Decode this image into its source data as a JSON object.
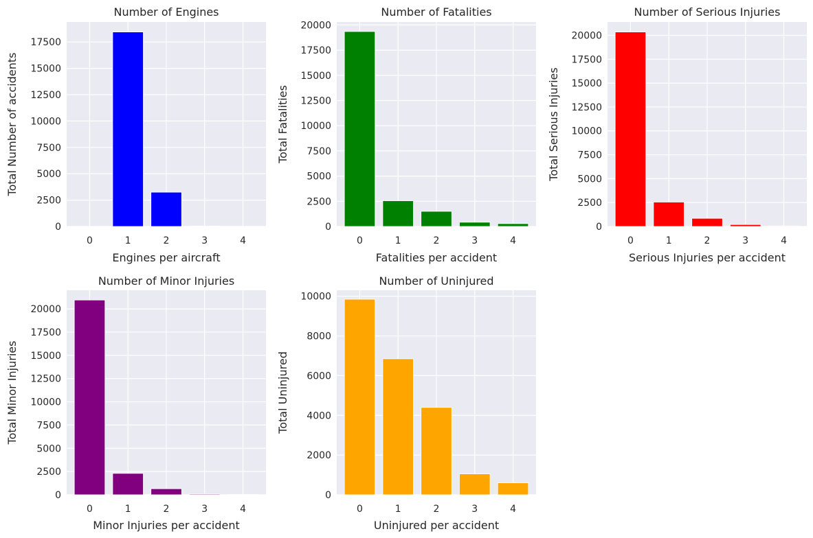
{
  "chart_data": [
    {
      "id": "engines",
      "type": "bar",
      "title": "Number of Engines",
      "xlabel": "Engines per aircraft",
      "ylabel": "Total Number of accidents",
      "categories": [
        "0",
        "1",
        "2",
        "3",
        "4"
      ],
      "values": [
        10,
        18450,
        3250,
        30,
        10
      ],
      "color": "#0000ff",
      "ylim": [
        0,
        19400
      ],
      "yticks": [
        0,
        2500,
        5000,
        7500,
        10000,
        12500,
        15000,
        17500
      ],
      "grid": true
    },
    {
      "id": "fatalities",
      "type": "bar",
      "title": "Number of Fatalities",
      "xlabel": "Fatalities per accident",
      "ylabel": "Total Fatalities",
      "categories": [
        "0",
        "1",
        "2",
        "3",
        "4"
      ],
      "values": [
        19350,
        2550,
        1500,
        420,
        280
      ],
      "color": "#008000",
      "ylim": [
        0,
        20300
      ],
      "yticks": [
        0,
        2500,
        5000,
        7500,
        10000,
        12500,
        15000,
        17500,
        20000
      ],
      "grid": true
    },
    {
      "id": "serious",
      "type": "bar",
      "title": "Number of Serious Injuries",
      "xlabel": "Serious Injuries per accident",
      "ylabel": "Total Serious Injuries",
      "categories": [
        "0",
        "1",
        "2",
        "3",
        "4"
      ],
      "values": [
        20350,
        2550,
        850,
        200,
        60
      ],
      "color": "#ff0000",
      "ylim": [
        0,
        21400
      ],
      "yticks": [
        0,
        2500,
        5000,
        7500,
        10000,
        12500,
        15000,
        17500,
        20000
      ],
      "grid": true
    },
    {
      "id": "minor",
      "type": "bar",
      "title": "Number of Minor Injuries",
      "xlabel": "Minor Injuries per accident",
      "ylabel": "Total Minor Injuries",
      "categories": [
        "0",
        "1",
        "2",
        "3",
        "4"
      ],
      "values": [
        20950,
        2300,
        650,
        80,
        30
      ],
      "color": "#800080",
      "ylim": [
        0,
        22000
      ],
      "yticks": [
        0,
        2500,
        5000,
        7500,
        10000,
        12500,
        15000,
        17500,
        20000
      ],
      "grid": true
    },
    {
      "id": "uninjured",
      "type": "bar",
      "title": "Number of Uninjured",
      "xlabel": "Uninjured per accident",
      "ylabel": "Total Uninjured",
      "categories": [
        "0",
        "1",
        "2",
        "3",
        "4"
      ],
      "values": [
        9850,
        6850,
        4400,
        1050,
        600
      ],
      "color": "#ffa500",
      "ylim": [
        0,
        10300
      ],
      "yticks": [
        0,
        2000,
        4000,
        6000,
        8000,
        10000
      ],
      "grid": true
    }
  ]
}
